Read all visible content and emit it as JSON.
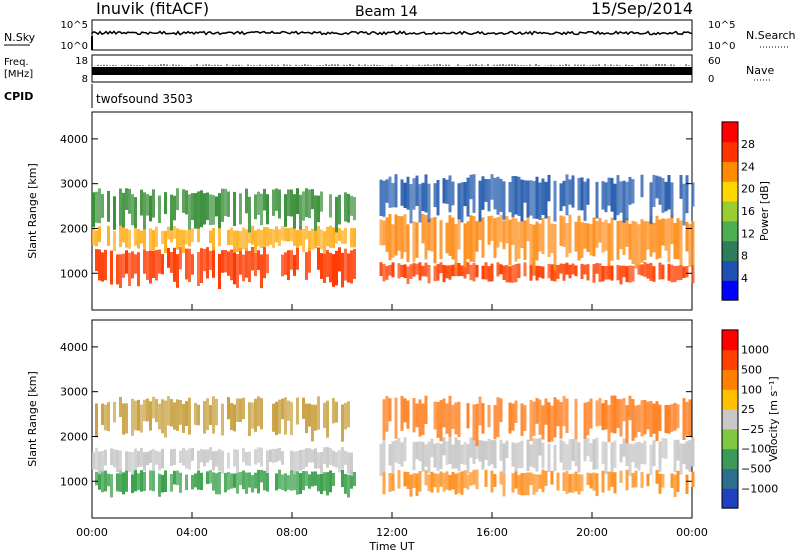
{
  "header": {
    "station": "Inuvik (fitACF)",
    "beam": "Beam 14",
    "date": "15/Sep/2014"
  },
  "status_panels": {
    "nsky_label": "N.Sky",
    "nsky_ticks": [
      "10^5",
      "10^0"
    ],
    "nsearch_label": "N.Search",
    "nsearch_ticks": [
      "10^5",
      "10^0"
    ],
    "freq_label_1": "Freq.",
    "freq_label_2": "[MHz]",
    "freq_ticks": [
      "18",
      "8"
    ],
    "nave_label": "Nave",
    "nave_ticks": [
      "60",
      "0"
    ],
    "cpid_label": "CPID",
    "cpid_value": "twofsound 3503"
  },
  "chart_data": [
    {
      "type": "heatmap",
      "name": "power",
      "ylabel": "Slant Range [km]",
      "yticks": [
        "1000",
        "2000",
        "3000",
        "4000"
      ],
      "ylim": [
        180,
        4600
      ],
      "xlim": [
        0,
        24
      ],
      "colorbar": {
        "label": "Power [dB]",
        "ticks": [
          "4",
          "8",
          "12",
          "16",
          "20",
          "24",
          "28"
        ],
        "colors": [
          "#0000ff",
          "#2050b0",
          "#2e7d5a",
          "#4caf50",
          "#9acd32",
          "#ffd700",
          "#ff8c00",
          "#ff3300",
          "#ff0000"
        ]
      },
      "bands": [
        {
          "t0": 0,
          "t1": 10.5,
          "y0": 750,
          "y1": 1500,
          "color": "#ff3a00"
        },
        {
          "t0": 0,
          "t1": 10.5,
          "y0": 1500,
          "y1": 2000,
          "color": "#ffb020"
        },
        {
          "t0": 0,
          "t1": 10.5,
          "y0": 2000,
          "y1": 2800,
          "color": "#3a8f3a"
        },
        {
          "t0": 11.5,
          "t1": 24,
          "y0": 800,
          "y1": 1200,
          "color": "#ff4000"
        },
        {
          "t0": 11.5,
          "t1": 24,
          "y0": 1200,
          "y1": 2200,
          "color": "#ff9020"
        },
        {
          "t0": 11.5,
          "t1": 24,
          "y0": 2200,
          "y1": 3100,
          "color": "#2a60b0"
        }
      ]
    },
    {
      "type": "heatmap",
      "name": "velocity",
      "ylabel": "Slant Range [km]",
      "yticks": [
        "1000",
        "2000",
        "3000",
        "4000"
      ],
      "ylim": [
        180,
        4600
      ],
      "xlim": [
        0,
        24
      ],
      "xticks": [
        "00:00",
        "04:00",
        "08:00",
        "12:00",
        "16:00",
        "20:00",
        "00:00"
      ],
      "xlabel": "Time UT",
      "colorbar": {
        "label": "Velocity [m s⁻¹]",
        "ticks": [
          "1000",
          "500",
          "100",
          "25",
          "−25",
          "−100",
          "−500",
          "−1000"
        ],
        "colors": [
          "#2040c0",
          "#2e6e8e",
          "#3a9a5a",
          "#7fc840",
          "#c8c8c8",
          "#ffc000",
          "#ff8000",
          "#ff4000",
          "#ff0000"
        ]
      },
      "bands": [
        {
          "t0": 0,
          "t1": 10.5,
          "y0": 700,
          "y1": 1200,
          "color": "#3aa04a"
        },
        {
          "t0": 0,
          "t1": 10.5,
          "y0": 1200,
          "y1": 1700,
          "color": "#c8c8c8"
        },
        {
          "t0": 0,
          "t1": 10.5,
          "y0": 2000,
          "y1": 2800,
          "color": "#c8a040"
        },
        {
          "t0": 11.5,
          "t1": 24,
          "y0": 700,
          "y1": 1200,
          "color": "#ff9020"
        },
        {
          "t0": 11.5,
          "t1": 24,
          "y0": 1200,
          "y1": 1900,
          "color": "#c8c8c8"
        },
        {
          "t0": 11.5,
          "t1": 24,
          "y0": 1900,
          "y1": 2800,
          "color": "#ff8020"
        }
      ]
    }
  ]
}
